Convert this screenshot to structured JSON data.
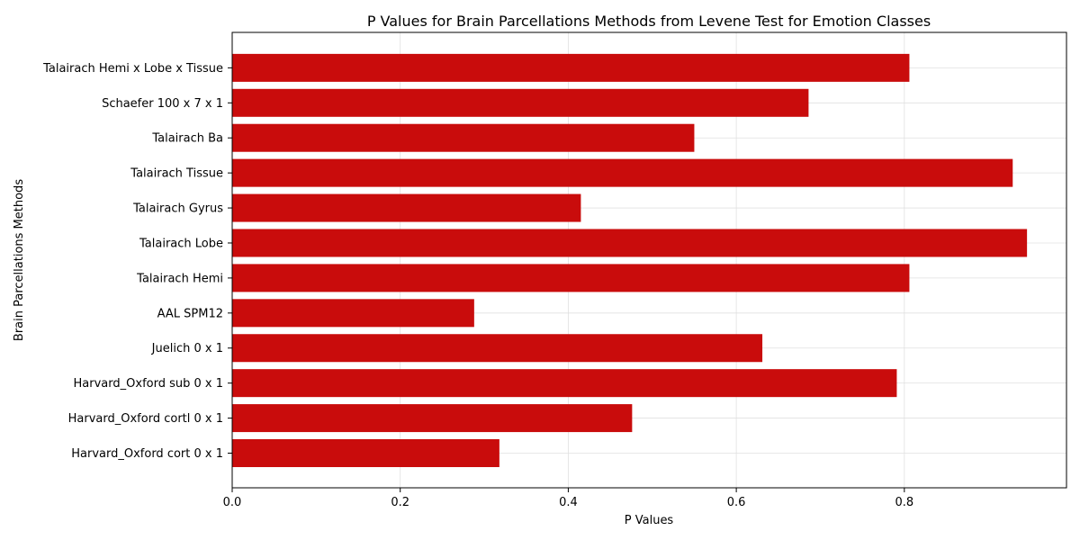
{
  "chart_data": {
    "type": "bar",
    "orientation": "horizontal",
    "title": "P Values for Brain Parcellations Methods from Levene Test for Emotion Classes",
    "xlabel": "P Values",
    "ylabel": "Brain Parcellations Methods",
    "xlim": [
      0,
      0.993
    ],
    "x_ticks": [
      "0.0",
      "0.2",
      "0.4",
      "0.6",
      "0.8"
    ],
    "grid": true,
    "bar_color": "#c90c0c",
    "categories": [
      "Harvard_Oxford cort 0 x 1",
      "Harvard_Oxford cortl 0 x 1",
      "Harvard_Oxford sub 0 x 1",
      "Juelich 0 x 1",
      "AAL SPM12",
      "Talairach Hemi",
      "Talairach Lobe",
      "Talairach Gyrus",
      "Talairach Tissue",
      "Talairach Ba",
      "Schaefer 100 x 7 x 1",
      "Talairach Hemi x Lobe x Tissue"
    ],
    "values": [
      0.318,
      0.476,
      0.791,
      0.631,
      0.288,
      0.806,
      0.946,
      0.415,
      0.929,
      0.55,
      0.686,
      0.806
    ]
  }
}
